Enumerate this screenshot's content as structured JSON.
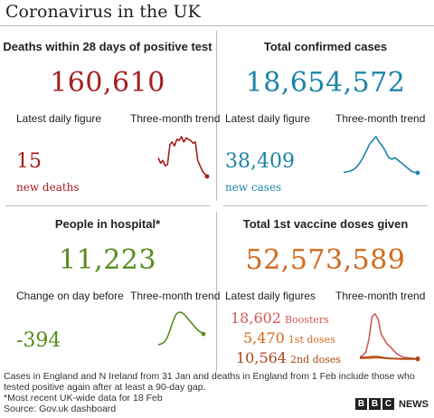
{
  "title": "Coronavirus in the UK",
  "colors": {
    "deaths": "#a51d1d",
    "cases": "#1c84a8",
    "hospital": "#588b1e",
    "vaccine": "#d2691e",
    "boosters": "#cf5a55",
    "second_doses": "#a84418"
  },
  "panels": {
    "deaths": {
      "heading": "Deaths within 28 days of positive test",
      "total": "160,610",
      "daily_label": "Latest daily figure",
      "trend_label": "Three-month trend",
      "daily_value": "15",
      "daily_sub": "new deaths"
    },
    "cases": {
      "heading": "Total confirmed cases",
      "total": "18,654,572",
      "daily_label": "Latest daily figure",
      "trend_label": "Three-month trend",
      "daily_value": "38,409",
      "daily_sub": "new cases"
    },
    "hospital": {
      "heading": "People in hospital*",
      "total": "11,223",
      "daily_label": "Change on day before",
      "trend_label": "Three-month trend",
      "daily_value": "-394"
    },
    "vaccine": {
      "heading": "Total 1st vaccine doses given",
      "total": "52,573,589",
      "daily_label": "Latest daily figures",
      "trend_label": "Three-month trend",
      "boosters_value": "18,602",
      "boosters_label": "Boosters",
      "first_value": "5,470",
      "first_label": "1st doses",
      "second_value": "10,564",
      "second_label": "2nd doses"
    }
  },
  "footnote": {
    "line1": "Cases in England and N Ireland from 31 Jan and deaths in England from 1 Feb include those who tested positive again after at least a 90-day gap.",
    "line2": "*Most recent UK-wide data for 18 Feb",
    "line3": "Source: Gov.uk dashboard"
  },
  "branding": {
    "b1": "B",
    "b2": "B",
    "b3": "C",
    "news": "NEWS"
  },
  "chart_data": [
    {
      "type": "line",
      "series": [
        {
          "values": [
            170,
            150,
            160,
            140,
            145,
            220,
            230,
            215,
            240,
            235,
            250,
            230,
            245,
            240,
            235,
            225,
            230,
            160,
            140,
            120,
            110,
            100
          ]
        }
      ]
    },
    {
      "type": "line",
      "series": [
        {
          "values": [
            40000,
            42000,
            45000,
            50000,
            60000,
            75000,
            95000,
            120000,
            145000,
            160000,
            175000,
            155000,
            140000,
            120000,
            95000,
            90000,
            95000,
            85000,
            75000,
            65000,
            55000,
            45000,
            40000,
            38409
          ]
        }
      ]
    },
    {
      "type": "line",
      "series": [
        {
          "values": [
            7000,
            7200,
            7600,
            8200,
            9500,
            11500,
            14000,
            16500,
            18500,
            19500,
            19800,
            19600,
            19000,
            18000,
            17000,
            16000,
            15000,
            14000,
            13000,
            12300,
            11800,
            11223
          ]
        }
      ]
    },
    {
      "type": "line",
      "series": [
        {
          "name": "Boosters",
          "values": [
            50000,
            80000,
            150000,
            400000,
            850000,
            900000,
            800000,
            500000,
            400000,
            300000,
            250000,
            180000,
            120000,
            80000,
            50000,
            40000,
            30000,
            25000,
            20000,
            18602
          ]
        },
        {
          "name": "1st doses",
          "values": [
            20000,
            22000,
            24000,
            26000,
            28000,
            30000,
            32000,
            30000,
            25000,
            20000,
            15000,
            12000,
            10000,
            9000,
            8000,
            7000,
            6000,
            6000,
            5500,
            5470
          ]
        },
        {
          "name": "2nd doses",
          "values": [
            40000,
            42000,
            45000,
            50000,
            55000,
            60000,
            55000,
            45000,
            35000,
            28000,
            24000,
            20000,
            18000,
            16000,
            15000,
            14000,
            13000,
            12000,
            11000,
            10564
          ]
        }
      ]
    }
  ]
}
